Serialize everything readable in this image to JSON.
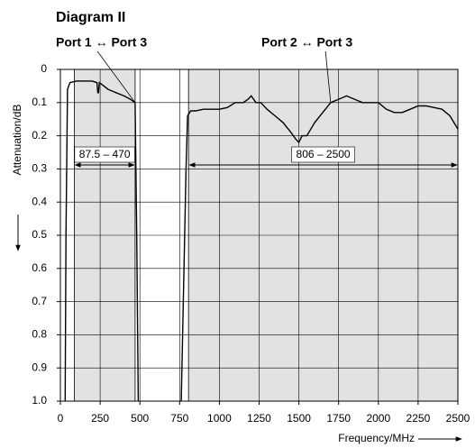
{
  "chart_data": {
    "type": "line",
    "title": "Diagram II",
    "x_label": "Frequency/MHz",
    "y_label": "Attenuation/dB",
    "xlim": [
      0,
      2500
    ],
    "ylim": [
      0,
      1
    ],
    "y_inverted": true,
    "xticks": [
      0,
      250,
      500,
      750,
      1000,
      1250,
      1500,
      1750,
      2000,
      2250,
      2500
    ],
    "yticks": [
      0,
      0.1,
      0.2,
      0.3,
      0.4,
      0.5,
      0.6,
      0.7,
      0.8,
      0.9,
      {
        "value": 1,
        "label": "1.0"
      }
    ],
    "grid": true,
    "bands": [
      {
        "label": "87.5 – 470",
        "start": 87.5,
        "end": 470
      },
      {
        "label": "806 – 2500",
        "start": 806,
        "end": 2500
      }
    ],
    "band_color": "#e2e2e2",
    "series": [
      {
        "name": "Port 1 ↔ Port 3",
        "color": "#000000",
        "x": [
          30,
          35,
          45,
          60,
          100,
          150,
          200,
          230,
          235,
          240,
          245,
          260,
          300,
          350,
          400,
          440,
          470,
          480,
          490
        ],
        "values": [
          1.0,
          0.5,
          0.06,
          0.04,
          0.035,
          0.035,
          0.035,
          0.04,
          0.07,
          0.07,
          0.04,
          0.045,
          0.06,
          0.07,
          0.08,
          0.09,
          0.1,
          0.5,
          1.0
        ]
      },
      {
        "name": "Port 2 ↔ Port 3",
        "color": "#000000",
        "x": [
          760,
          790,
          800,
          820,
          850,
          900,
          1000,
          1050,
          1100,
          1150,
          1180,
          1200,
          1230,
          1260,
          1300,
          1350,
          1400,
          1450,
          1480,
          1500,
          1520,
          1550,
          1600,
          1650,
          1700,
          1750,
          1800,
          1850,
          1900,
          2000,
          2050,
          2100,
          2150,
          2200,
          2250,
          2300,
          2400,
          2450,
          2500
        ],
        "values": [
          1.0,
          0.3,
          0.14,
          0.125,
          0.125,
          0.12,
          0.12,
          0.115,
          0.1,
          0.1,
          0.09,
          0.08,
          0.1,
          0.1,
          0.12,
          0.14,
          0.16,
          0.19,
          0.21,
          0.22,
          0.2,
          0.2,
          0.16,
          0.13,
          0.1,
          0.09,
          0.08,
          0.09,
          0.1,
          0.1,
          0.12,
          0.13,
          0.13,
          0.12,
          0.11,
          0.11,
          0.12,
          0.14,
          0.18
        ]
      }
    ]
  }
}
